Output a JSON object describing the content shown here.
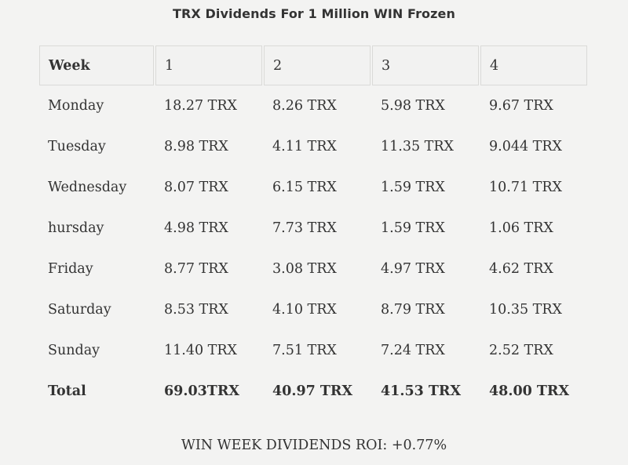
{
  "title": "TRX Dividends For 1 Million WIN Frozen",
  "table": {
    "header": [
      "Week",
      "1",
      "2",
      "3",
      "4"
    ],
    "rows": [
      [
        "Monday",
        "18.27 TRX",
        "8.26 TRX",
        "5.98 TRX",
        "9.67 TRX"
      ],
      [
        "Tuesday",
        "8.98 TRX",
        "4.11 TRX",
        "11.35 TRX",
        "9.044 TRX"
      ],
      [
        "Wednesday",
        "8.07 TRX",
        "6.15 TRX",
        "1.59 TRX",
        "10.71 TRX"
      ],
      [
        "hursday",
        "4.98 TRX",
        "7.73 TRX",
        "1.59 TRX",
        "1.06 TRX"
      ],
      [
        "Friday",
        "8.77 TRX",
        "3.08 TRX",
        "4.97 TRX",
        "4.62 TRX"
      ],
      [
        "Saturday",
        "8.53 TRX",
        "4.10 TRX",
        "8.79 TRX",
        "10.35 TRX"
      ],
      [
        "Sunday",
        "11.40 TRX",
        "7.51 TRX",
        "7.24 TRX",
        "2.52 TRX"
      ],
      [
        "Total",
        "69.03TRX",
        "40.97 TRX",
        "41.53 TRX",
        "48.00 TRX"
      ]
    ]
  },
  "footer": {
    "roi": "WIN WEEK DIVIDENDS ROI: +0.77%"
  }
}
